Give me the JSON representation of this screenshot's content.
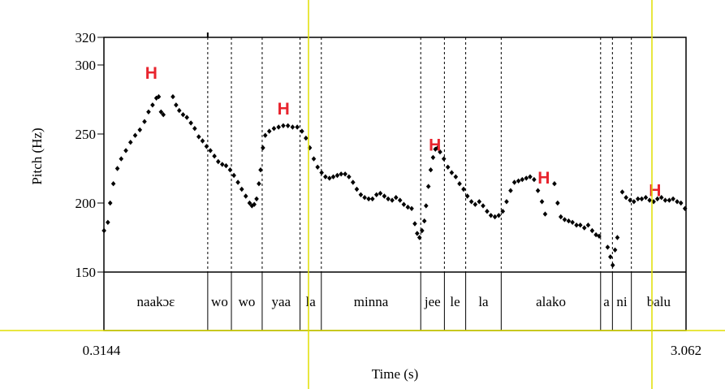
{
  "chart_data": {
    "type": "scatter",
    "xlabel": "Time (s)",
    "ylabel": "Pitch (Hz)",
    "xlim": [
      0.3144,
      3.062
    ],
    "ylim": [
      150,
      320
    ],
    "x_tick_labels": [
      "0.3144",
      "3.062"
    ],
    "y_tick_labels": [
      "320",
      "300",
      "250",
      "200",
      "150"
    ],
    "y_ticks": [
      320,
      300,
      250,
      200,
      150
    ],
    "segments": [
      {
        "label": "naakɔɛ",
        "start": 0.3144,
        "end": 0.8044
      },
      {
        "label": "wo",
        "start": 0.8044,
        "end": 0.9161
      },
      {
        "label": "wo",
        "start": 0.9161,
        "end": 1.0614
      },
      {
        "label": "yaa",
        "start": 1.0614,
        "end": 1.2401
      },
      {
        "label": "la",
        "start": 1.2401,
        "end": 1.3406
      },
      {
        "label": "minna",
        "start": 1.3406,
        "end": 1.8098
      },
      {
        "label": "jee",
        "start": 1.8098,
        "end": 1.9215
      },
      {
        "label": "le",
        "start": 1.9215,
        "end": 2.022
      },
      {
        "label": "la",
        "start": 2.022,
        "end": 2.1896
      },
      {
        "label": "alako",
        "start": 2.1896,
        "end": 2.6588
      },
      {
        "label": "a",
        "start": 2.6588,
        "end": 2.7146
      },
      {
        "label": "ni",
        "start": 2.7146,
        "end": 2.804
      },
      {
        "label": "balu",
        "start": 2.804,
        "end": 3.062
      }
    ],
    "annotations": [
      {
        "text": "H",
        "x": 0.5379,
        "y": 290
      },
      {
        "text": "H",
        "x": 1.162,
        "y": 264
      },
      {
        "text": "H",
        "x": 1.8768,
        "y": 238
      },
      {
        "text": "H",
        "x": 2.3907,
        "y": 214
      },
      {
        "text": "H",
        "x": 2.9158,
        "y": 205
      }
    ],
    "pitch_contour": [
      [
        0.315,
        180
      ],
      [
        0.333,
        186
      ],
      [
        0.344,
        200
      ],
      [
        0.359,
        214
      ],
      [
        0.378,
        225
      ],
      [
        0.396,
        232
      ],
      [
        0.418,
        238
      ],
      [
        0.44,
        244
      ],
      [
        0.462,
        249
      ],
      [
        0.484,
        253
      ],
      [
        0.506,
        259
      ],
      [
        0.525,
        266
      ],
      [
        0.544,
        271
      ],
      [
        0.562,
        276
      ],
      [
        0.573,
        277
      ],
      [
        0.584,
        266
      ],
      [
        0.595,
        264
      ],
      [
        0.64,
        277
      ],
      [
        0.655,
        271
      ],
      [
        0.67,
        267
      ],
      [
        0.688,
        264
      ],
      [
        0.706,
        262
      ],
      [
        0.725,
        258
      ],
      [
        0.743,
        254
      ],
      [
        0.762,
        248
      ],
      [
        0.78,
        245
      ],
      [
        0.799,
        241
      ],
      [
        0.817,
        238
      ],
      [
        0.836,
        234
      ],
      [
        0.854,
        230
      ],
      [
        0.873,
        228
      ],
      [
        0.891,
        227
      ],
      [
        0.91,
        224
      ],
      [
        0.928,
        220
      ],
      [
        0.947,
        215
      ],
      [
        0.965,
        210
      ],
      [
        0.984,
        205
      ],
      [
        1.002,
        200
      ],
      [
        1.013,
        198
      ],
      [
        1.024,
        199
      ],
      [
        1.035,
        203
      ],
      [
        1.046,
        214
      ],
      [
        1.054,
        224
      ],
      [
        1.065,
        240
      ],
      [
        1.076,
        249
      ],
      [
        1.095,
        252
      ],
      [
        1.117,
        254
      ],
      [
        1.139,
        255
      ],
      [
        1.161,
        256
      ],
      [
        1.183,
        256
      ],
      [
        1.205,
        255
      ],
      [
        1.227,
        255
      ],
      [
        1.249,
        252
      ],
      [
        1.268,
        247
      ],
      [
        1.286,
        240
      ],
      [
        1.305,
        232
      ],
      [
        1.323,
        226
      ],
      [
        1.342,
        222
      ],
      [
        1.36,
        219
      ],
      [
        1.379,
        218
      ],
      [
        1.397,
        219
      ],
      [
        1.416,
        220
      ],
      [
        1.434,
        221
      ],
      [
        1.453,
        221
      ],
      [
        1.471,
        219
      ],
      [
        1.49,
        215
      ],
      [
        1.508,
        210
      ],
      [
        1.527,
        206
      ],
      [
        1.545,
        204
      ],
      [
        1.564,
        203
      ],
      [
        1.582,
        203
      ],
      [
        1.601,
        206
      ],
      [
        1.619,
        207
      ],
      [
        1.638,
        205
      ],
      [
        1.656,
        203
      ],
      [
        1.675,
        202
      ],
      [
        1.693,
        204
      ],
      [
        1.712,
        202
      ],
      [
        1.73,
        199
      ],
      [
        1.749,
        197
      ],
      [
        1.767,
        196
      ],
      [
        1.782,
        185
      ],
      [
        1.793,
        178
      ],
      [
        1.804,
        175
      ],
      [
        1.816,
        180
      ],
      [
        1.827,
        187
      ],
      [
        1.835,
        198
      ],
      [
        1.846,
        212
      ],
      [
        1.857,
        224
      ],
      [
        1.868,
        233
      ],
      [
        1.879,
        239
      ],
      [
        1.89,
        240
      ],
      [
        1.901,
        237
      ],
      [
        1.919,
        232
      ],
      [
        1.938,
        226
      ],
      [
        1.956,
        222
      ],
      [
        1.975,
        219
      ],
      [
        1.993,
        214
      ],
      [
        2.012,
        210
      ],
      [
        2.03,
        205
      ],
      [
        2.049,
        201
      ],
      [
        2.067,
        199
      ],
      [
        2.086,
        201
      ],
      [
        2.104,
        198
      ],
      [
        2.123,
        194
      ],
      [
        2.141,
        191
      ],
      [
        2.16,
        190
      ],
      [
        2.178,
        191
      ],
      [
        2.197,
        194
      ],
      [
        2.215,
        201
      ],
      [
        2.234,
        209
      ],
      [
        2.252,
        215
      ],
      [
        2.271,
        216
      ],
      [
        2.289,
        217
      ],
      [
        2.308,
        218
      ],
      [
        2.326,
        219
      ],
      [
        2.345,
        217
      ],
      [
        2.363,
        209
      ],
      [
        2.382,
        201
      ],
      [
        2.397,
        192
      ],
      [
        2.441,
        214
      ],
      [
        2.456,
        200
      ],
      [
        2.471,
        190
      ],
      [
        2.489,
        188
      ],
      [
        2.508,
        187
      ],
      [
        2.526,
        186
      ],
      [
        2.545,
        184
      ],
      [
        2.563,
        184
      ],
      [
        2.582,
        182
      ],
      [
        2.6,
        184
      ],
      [
        2.619,
        180
      ],
      [
        2.637,
        177
      ],
      [
        2.652,
        176
      ],
      [
        2.692,
        168
      ],
      [
        2.705,
        161
      ],
      [
        2.716,
        155
      ],
      [
        2.727,
        166
      ],
      [
        2.738,
        175
      ],
      [
        2.761,
        208
      ],
      [
        2.779,
        204
      ],
      [
        2.798,
        202
      ],
      [
        2.816,
        201
      ],
      [
        2.835,
        203
      ],
      [
        2.853,
        203
      ],
      [
        2.872,
        204
      ],
      [
        2.89,
        202
      ],
      [
        2.909,
        201
      ],
      [
        2.927,
        203
      ],
      [
        2.946,
        204
      ],
      [
        2.964,
        202
      ],
      [
        2.983,
        202
      ],
      [
        3.001,
        203
      ],
      [
        3.02,
        201
      ],
      [
        3.038,
        200
      ],
      [
        3.057,
        196
      ]
    ],
    "colors": {
      "points": "#000000",
      "highlight": "#e8242e",
      "cursor": "#e0df00"
    }
  }
}
